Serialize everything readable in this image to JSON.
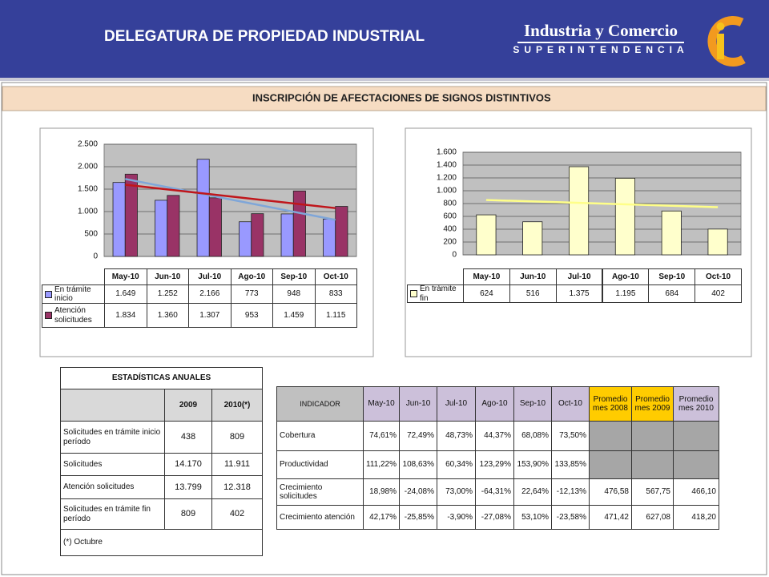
{
  "header": {
    "title": "DELEGATURA DE PROPIEDAD INDUSTRIAL",
    "logo_line1": "Industria y Comercio",
    "logo_line2": "SUPERINTENDENCIA"
  },
  "panel_title": "INSCRIPCIÓN DE AFECTACIONES DE SIGNOS DISTINTIVOS",
  "chart_data": [
    {
      "type": "bar",
      "categories": [
        "May-10",
        "Jun-10",
        "Jul-10",
        "Ago-10",
        "Sep-10",
        "Oct-10"
      ],
      "series": [
        {
          "name": "En trámite inicio",
          "color": "#9999ff",
          "trendline_color": "#7fa6d8",
          "values": [
            1649,
            1252,
            2166,
            773,
            948,
            833
          ],
          "value_labels": [
            "1.649",
            "1.252",
            "2.166",
            "773",
            "948",
            "833"
          ]
        },
        {
          "name": "Atención solicitudes",
          "color": "#993366",
          "trendline_color": "#c0161b",
          "values": [
            1834,
            1360,
            1307,
            953,
            1459,
            1115
          ],
          "value_labels": [
            "1.834",
            "1.360",
            "1.307",
            "953",
            "1.459",
            "1.115"
          ]
        }
      ],
      "ylim": [
        0,
        2500
      ],
      "yticks": [
        0,
        500,
        {
          "value": 1000,
          "label": "1.000"
        },
        {
          "value": 1500,
          "label": "1.500"
        },
        {
          "value": 2000,
          "label": "2.000"
        },
        {
          "value": 2500,
          "label": "2.500"
        }
      ],
      "grid": true,
      "trendline": true,
      "data_table": true
    },
    {
      "type": "bar",
      "categories": [
        "May-10",
        "Jun-10",
        "Jul-10",
        "Ago-10",
        "Sep-10",
        "Oct-10"
      ],
      "series": [
        {
          "name": "En trámite fin",
          "color": "#ffffcc",
          "trendline_color": "#ffff88",
          "values": [
            624,
            516,
            1375,
            1195,
            684,
            402
          ],
          "value_labels": [
            "624",
            "516",
            "1.375",
            "1.195",
            "684",
            "402"
          ]
        }
      ],
      "ylim": [
        0,
        1600
      ],
      "yticks": [
        0,
        200,
        400,
        600,
        800,
        {
          "value": 1000,
          "label": "1.000"
        },
        {
          "value": 1200,
          "label": "1.200"
        },
        {
          "value": 1400,
          "label": "1.400"
        },
        {
          "value": 1600,
          "label": "1.600"
        }
      ],
      "grid": true,
      "trendline": true,
      "data_table": true
    }
  ],
  "annual_table": {
    "title": "ESTADÍSTICAS ANUALES",
    "columns": [
      "2009",
      "2010(*)"
    ],
    "rows": [
      [
        "Solicitudes en trámite inicio período",
        "438",
        "809"
      ],
      [
        "Solicitudes",
        "14.170",
        "11.911"
      ],
      [
        "Atención solicitudes",
        "13.799",
        "12.318"
      ],
      [
        "Solicitudes en trámite fin período",
        "809",
        "402"
      ]
    ],
    "footnote": "(*) Octubre"
  },
  "indicator_table": {
    "columns": [
      "INDICADOR",
      "May-10",
      "Jun-10",
      "Jul-10",
      "Ago-10",
      "Sep-10",
      "Oct-10",
      "Promedio mes 2008",
      "Promedio mes 2009",
      "Promedio mes 2010"
    ],
    "rows": [
      [
        "Cobertura",
        "74,61%",
        "72,49%",
        "48,73%",
        "44,37%",
        "68,08%",
        "73,50%",
        null,
        null,
        null
      ],
      [
        "Productividad",
        "111,22%",
        "108,63%",
        "60,34%",
        "123,29%",
        "153,90%",
        "133,85%",
        null,
        null,
        null
      ],
      [
        "Crecimiento solicitudes",
        "18,98%",
        "-24,08%",
        "73,00%",
        "-64,31%",
        "22,64%",
        "-12,13%",
        "476,58",
        "567,75",
        "466,10"
      ],
      [
        "Crecimiento atención",
        "42,17%",
        "-25,85%",
        "-3,90%",
        "-27,08%",
        "53,10%",
        "-23,58%",
        "471,42",
        "627,08",
        "418,20"
      ]
    ]
  }
}
